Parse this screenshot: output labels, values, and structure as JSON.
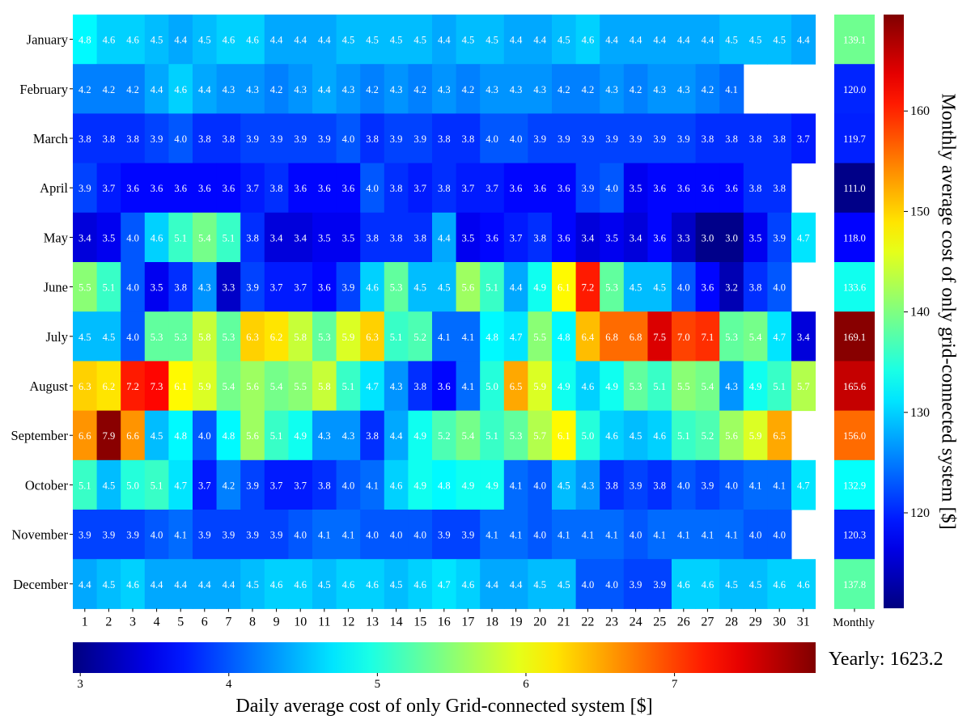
{
  "chart_data": {
    "type": "heatmap",
    "colormap": "jet",
    "x_tick_labels": [
      "1",
      "2",
      "3",
      "4",
      "5",
      "6",
      "7",
      "8",
      "9",
      "10",
      "11",
      "12",
      "13",
      "14",
      "15",
      "16",
      "17",
      "18",
      "19",
      "20",
      "21",
      "22",
      "23",
      "24",
      "25",
      "26",
      "27",
      "28",
      "29",
      "30",
      "31"
    ],
    "months": [
      "January",
      "February",
      "March",
      "April",
      "May",
      "June",
      "July",
      "August",
      "September",
      "October",
      "November",
      "December"
    ],
    "daily_values": [
      [
        4.8,
        4.6,
        4.6,
        4.5,
        4.4,
        4.5,
        4.6,
        4.6,
        4.4,
        4.4,
        4.4,
        4.5,
        4.5,
        4.5,
        4.5,
        4.4,
        4.5,
        4.5,
        4.4,
        4.4,
        4.5,
        4.6,
        4.4,
        4.4,
        4.4,
        4.4,
        4.4,
        4.5,
        4.5,
        4.5,
        4.4
      ],
      [
        4.2,
        4.2,
        4.2,
        4.4,
        4.6,
        4.4,
        4.3,
        4.3,
        4.2,
        4.3,
        4.4,
        4.3,
        4.2,
        4.3,
        4.2,
        4.3,
        4.2,
        4.3,
        4.3,
        4.3,
        4.2,
        4.2,
        4.3,
        4.2,
        4.3,
        4.3,
        4.2,
        4.1
      ],
      [
        3.8,
        3.8,
        3.8,
        3.9,
        4.0,
        3.8,
        3.8,
        3.9,
        3.9,
        3.9,
        3.9,
        4.0,
        3.8,
        3.9,
        3.9,
        3.8,
        3.8,
        4.0,
        4.0,
        3.9,
        3.9,
        3.9,
        3.9,
        3.9,
        3.9,
        3.9,
        3.8,
        3.8,
        3.8,
        3.8,
        3.7
      ],
      [
        3.9,
        3.7,
        3.6,
        3.6,
        3.6,
        3.6,
        3.6,
        3.7,
        3.8,
        3.6,
        3.6,
        3.6,
        4.0,
        3.8,
        3.7,
        3.8,
        3.7,
        3.7,
        3.6,
        3.6,
        3.6,
        3.9,
        4.0,
        3.5,
        3.6,
        3.6,
        3.6,
        3.6,
        3.8,
        3.8
      ],
      [
        3.4,
        3.5,
        4.0,
        4.6,
        5.1,
        5.4,
        5.1,
        3.8,
        3.4,
        3.4,
        3.5,
        3.5,
        3.8,
        3.8,
        3.8,
        4.4,
        3.5,
        3.6,
        3.7,
        3.8,
        3.6,
        3.4,
        3.5,
        3.4,
        3.6,
        3.3,
        3.0,
        3.0,
        3.5,
        3.9,
        4.7
      ],
      [
        5.5,
        5.1,
        4.0,
        3.5,
        3.8,
        4.3,
        3.3,
        3.9,
        3.7,
        3.7,
        3.6,
        3.9,
        4.6,
        5.3,
        4.5,
        4.5,
        5.6,
        5.1,
        4.4,
        4.9,
        6.1,
        7.2,
        5.3,
        4.5,
        4.5,
        4.0,
        3.6,
        3.2,
        3.8,
        4.0
      ],
      [
        4.5,
        4.5,
        4.0,
        5.3,
        5.3,
        5.8,
        5.3,
        6.3,
        6.2,
        5.8,
        5.3,
        5.9,
        6.3,
        5.1,
        5.2,
        4.1,
        4.1,
        4.8,
        4.7,
        5.5,
        4.8,
        6.4,
        6.8,
        6.8,
        7.5,
        7.0,
        7.1,
        5.3,
        5.4,
        4.7,
        3.4
      ],
      [
        6.3,
        6.2,
        7.2,
        7.3,
        6.1,
        5.9,
        5.4,
        5.6,
        5.4,
        5.5,
        5.8,
        5.1,
        4.7,
        4.3,
        3.8,
        3.6,
        4.1,
        5.0,
        6.5,
        5.9,
        4.9,
        4.6,
        4.9,
        5.3,
        5.1,
        5.5,
        5.4,
        4.3,
        4.9,
        5.1,
        5.7
      ],
      [
        6.6,
        7.9,
        6.6,
        4.5,
        4.8,
        4.0,
        4.8,
        5.6,
        5.1,
        4.9,
        4.3,
        4.3,
        3.8,
        4.4,
        4.9,
        5.2,
        5.4,
        5.1,
        5.3,
        5.7,
        6.1,
        5.0,
        4.6,
        4.5,
        4.6,
        5.1,
        5.2,
        5.6,
        5.9,
        6.5
      ],
      [
        5.1,
        4.5,
        5.0,
        5.1,
        4.7,
        3.7,
        4.2,
        3.9,
        3.7,
        3.7,
        3.8,
        4.0,
        4.1,
        4.6,
        4.9,
        4.8,
        4.9,
        4.9,
        4.1,
        4.0,
        4.5,
        4.3,
        3.8,
        3.9,
        3.8,
        4.0,
        3.9,
        4.0,
        4.1,
        4.1,
        4.7
      ],
      [
        3.9,
        3.9,
        3.9,
        4.0,
        4.1,
        3.9,
        3.9,
        3.9,
        3.9,
        4.0,
        4.1,
        4.1,
        4.0,
        4.0,
        4.0,
        3.9,
        3.9,
        4.1,
        4.1,
        4.0,
        4.1,
        4.1,
        4.1,
        4.0,
        4.1,
        4.1,
        4.1,
        4.1,
        4.0,
        4.0
      ],
      [
        4.4,
        4.5,
        4.6,
        4.4,
        4.4,
        4.4,
        4.4,
        4.5,
        4.6,
        4.6,
        4.5,
        4.6,
        4.6,
        4.5,
        4.6,
        4.7,
        4.6,
        4.4,
        4.4,
        4.5,
        4.5,
        4.0,
        4.0,
        3.9,
        3.9,
        4.6,
        4.6,
        4.5,
        4.5,
        4.6,
        4.6
      ]
    ],
    "monthly_column_label": "Monthly",
    "monthly_values": [
      139.1,
      120.0,
      119.7,
      111.0,
      118.0,
      133.6,
      169.1,
      165.6,
      156.0,
      132.9,
      120.3,
      137.8
    ],
    "daily_colorbar": {
      "range": [
        2.95,
        7.95
      ],
      "ticks": [
        3,
        4,
        5,
        6,
        7
      ],
      "label": "Daily average cost of only Grid-connected system [$]"
    },
    "monthly_colorbar": {
      "range": [
        110.5,
        169.6
      ],
      "ticks": [
        120,
        130,
        140,
        150,
        160
      ],
      "label": "Monthly average cost of only grid-connected system [$]"
    },
    "yearly_text": "Yearly: 1623.2"
  }
}
